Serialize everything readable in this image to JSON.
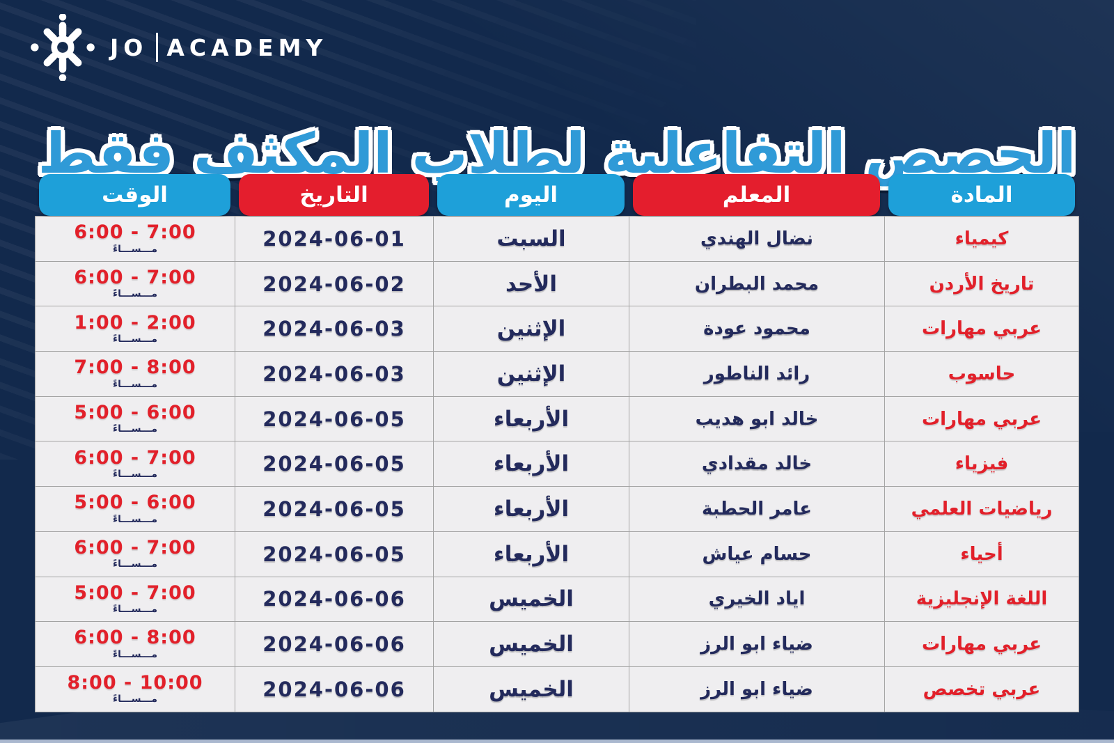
{
  "brand": {
    "jo": "JO",
    "academy": "ACADEMY",
    "logo_icon": "snowflake-asterisk"
  },
  "title": "الحصص التفاعلية لطلاب المكثف فقط",
  "colors": {
    "background_navy": "#12294c",
    "header_blue": "#1ea0d9",
    "header_red": "#e41e2d",
    "title_blue": "#2f9ad7",
    "cell_background": "#efeef0",
    "cell_border": "#a3a3a3",
    "text_navy": "#232a5c",
    "text_red": "#e2202a",
    "bottom_line": "#aab8cf"
  },
  "table": {
    "headers": [
      {
        "label": "المادة",
        "style": "blue"
      },
      {
        "label": "المعلم",
        "style": "red"
      },
      {
        "label": "اليوم",
        "style": "blue"
      },
      {
        "label": "التاريخ",
        "style": "red"
      },
      {
        "label": "الوقت",
        "style": "blue"
      }
    ],
    "evening_label": "مـــســـاءً",
    "rows": [
      {
        "subject": "كيمياء",
        "teacher": "نضال الهندي",
        "day": "السبت",
        "date": "2024-06-01",
        "time": "6:00 - 7:00"
      },
      {
        "subject": "تاريخ الأردن",
        "teacher": "محمد البطران",
        "day": "الأحد",
        "date": "2024-06-02",
        "time": "6:00 - 7:00"
      },
      {
        "subject": "عربي مهارات",
        "teacher": "محمود عودة",
        "day": "الإثنين",
        "date": "2024-06-03",
        "time": "1:00 - 2:00"
      },
      {
        "subject": "حاسوب",
        "teacher": "رائد الناطور",
        "day": "الإثنين",
        "date": "2024-06-03",
        "time": "7:00 - 8:00"
      },
      {
        "subject": "عربي مهارات",
        "teacher": "خالد ابو هديب",
        "day": "الأربعاء",
        "date": "2024-06-05",
        "time": "5:00 - 6:00"
      },
      {
        "subject": "فيزياء",
        "teacher": "خالد مقدادي",
        "day": "الأربعاء",
        "date": "2024-06-05",
        "time": "6:00 - 7:00"
      },
      {
        "subject": "رياضيات العلمي",
        "teacher": "عامر الحطبة",
        "day": "الأربعاء",
        "date": "2024-06-05",
        "time": "5:00 - 6:00"
      },
      {
        "subject": "أحياء",
        "teacher": "حسام عياش",
        "day": "الأربعاء",
        "date": "2024-06-05",
        "time": "6:00 - 7:00"
      },
      {
        "subject": "اللغة الإنجليزية",
        "teacher": "اياد الخيري",
        "day": "الخميس",
        "date": "2024-06-06",
        "time": "5:00 - 7:00"
      },
      {
        "subject": "عربي مهارات",
        "teacher": "ضياء ابو الرز",
        "day": "الخميس",
        "date": "2024-06-06",
        "time": "6:00 - 8:00"
      },
      {
        "subject": "عربي تخصص",
        "teacher": "ضياء ابو الرز",
        "day": "الخميس",
        "date": "2024-06-06",
        "time": "8:00 - 10:00"
      }
    ]
  }
}
